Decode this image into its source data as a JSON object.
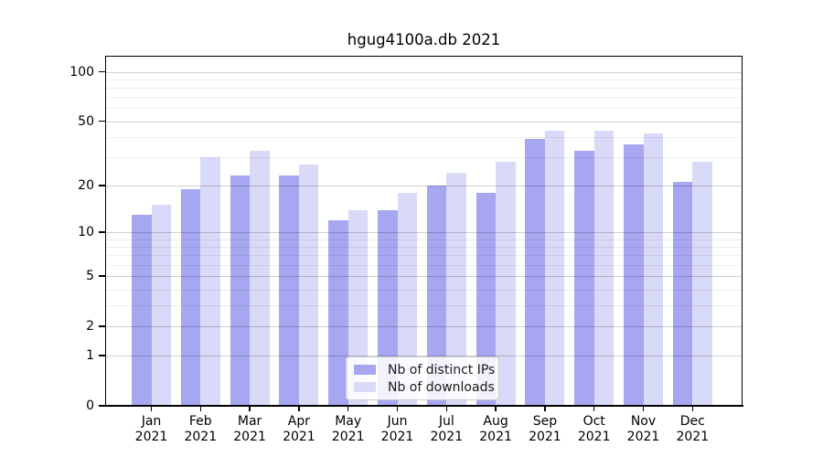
{
  "figure": {
    "title": "hgug4100a.db 2021"
  },
  "chart_data": {
    "type": "bar",
    "title": "hgug4100a.db 2021",
    "categories": [
      "Jan",
      "Feb",
      "Mar",
      "Apr",
      "May",
      "Jun",
      "Jul",
      "Aug",
      "Sep",
      "Oct",
      "Nov",
      "Dec"
    ],
    "category_year": "2021",
    "series": [
      {
        "name": "Nb of distinct IPs",
        "color": "#a6a6f1",
        "values": [
          13,
          19,
          23,
          23,
          12,
          14,
          20,
          18,
          39,
          33,
          36,
          21
        ]
      },
      {
        "name": "Nb of downloads",
        "color": "#d9d9f8",
        "values": [
          15,
          30,
          33,
          27,
          14,
          18,
          24,
          28,
          44,
          44,
          42,
          28
        ]
      }
    ],
    "y_scale": "log1p",
    "y_major_ticks": [
      0,
      1,
      2,
      5,
      10,
      20,
      50,
      100
    ],
    "y_minor_ticks": [
      3,
      4,
      6,
      7,
      8,
      9,
      30,
      40,
      60,
      70,
      80,
      90
    ],
    "ylim": [
      0,
      125
    ],
    "grid": true,
    "legend_position": "lower center",
    "legend_labels": [
      "Nb of distinct IPs",
      "Nb of downloads"
    ]
  },
  "colors": {
    "background": "#ffffff",
    "axis": "#000000",
    "major_grid": "rgba(0,0,0,0.19)",
    "minor_grid": "rgba(0,0,0,0.065)",
    "bar_distinct_ips": "#a6a6f1",
    "bar_downloads": "#d9d9f8",
    "legend_border": "#cccccc"
  }
}
